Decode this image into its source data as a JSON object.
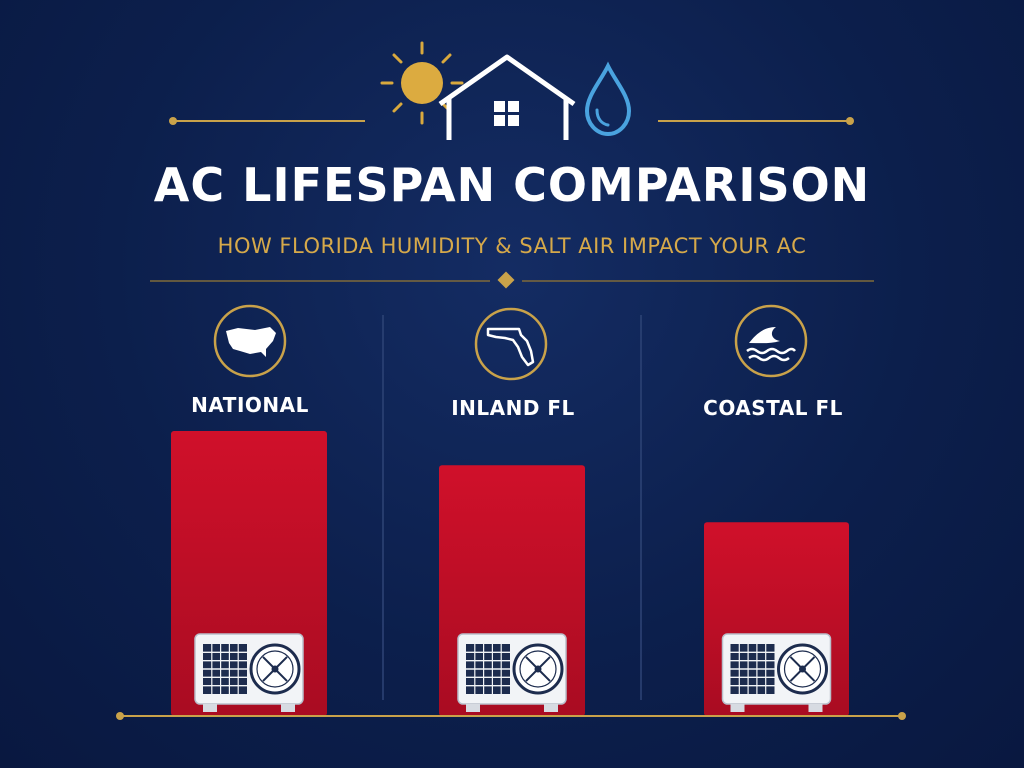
{
  "header": {
    "title": "AC LIFESPAN COMPARISON",
    "subtitle": "HOW FLORIDA HUMIDITY & SALT AIR IMPACT YOUR AC"
  },
  "icons": {
    "header": [
      "sun-icon",
      "house-icon",
      "water-drop-icon"
    ],
    "categories": [
      "usa-map-icon",
      "florida-map-icon",
      "ocean-wave-icon"
    ],
    "bar_base": "ac-condenser-icon"
  },
  "colors": {
    "background": "#0d2150",
    "bar": "#c8102e",
    "accent_gold": "#d6a94a",
    "drop_blue": "#4aa3df",
    "text": "#ffffff"
  },
  "chart_data": {
    "type": "bar",
    "title": "AC LIFESPAN COMPARISON",
    "subtitle": "HOW FLORIDA HUMIDITY & SALT AIR IMPACT YOUR AC",
    "categories": [
      "NATIONAL",
      "INLAND FL",
      "COASTAL FL"
    ],
    "values": [
      100,
      88,
      68
    ],
    "value_unit": "relative bar height (%), no numeric labels shown",
    "ylim": [
      0,
      100
    ],
    "xlabel": "",
    "ylabel": "",
    "grid": false,
    "legend": "none"
  }
}
